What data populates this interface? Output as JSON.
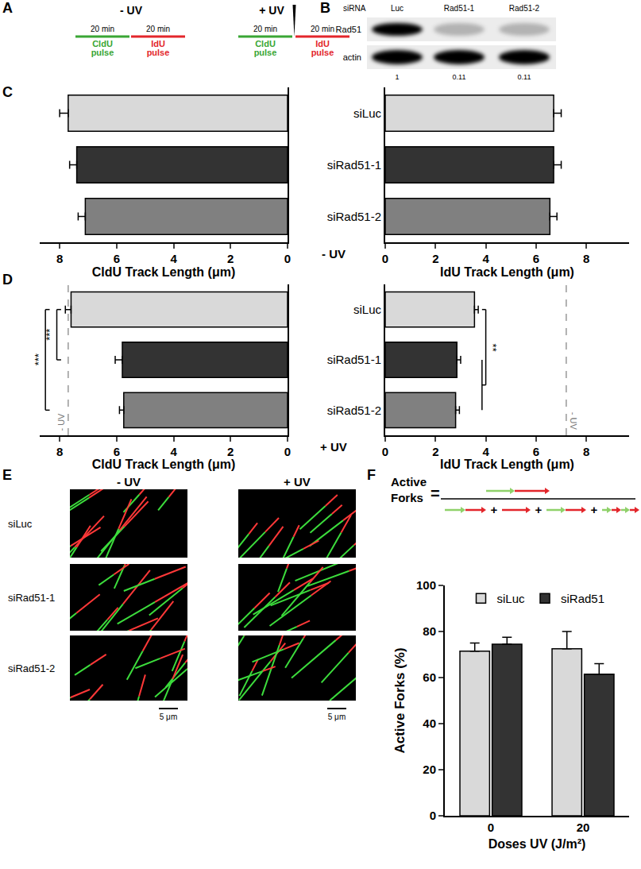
{
  "panel_labels": [
    "A",
    "B",
    "C",
    "D",
    "E",
    "F"
  ],
  "A": {
    "schemes": [
      {
        "title": "- UV",
        "uv": false
      },
      {
        "title": "+ UV",
        "uv": true
      }
    ],
    "pulses": [
      {
        "duration": "20 min",
        "label": "CldU pulse",
        "color": "#3aa635"
      },
      {
        "duration": "20 min",
        "label": "IdU pulse",
        "color": "#e3262b"
      }
    ]
  },
  "B": {
    "header": "siRNA",
    "lanes": [
      "Luc",
      "Rad51-1",
      "Rad51-2"
    ],
    "rows": [
      "Rad51",
      "actin"
    ],
    "quantification": [
      1,
      0.11,
      0.11
    ]
  },
  "chart_data": [
    {
      "type": "bar",
      "orientation": "horizontal",
      "categories": [
        "siLuc",
        "siRad51-1",
        "siRad51-2"
      ],
      "values": [
        7.7,
        7.4,
        7.1
      ],
      "errors": [
        0.3,
        0.25,
        0.25
      ],
      "colors": [
        "#d9d9d9",
        "#333333",
        "#808080"
      ],
      "x_label": "CldU Track Length (μm)",
      "xlim": [
        8.7,
        0
      ],
      "xticks": [
        0,
        2,
        4,
        6,
        8
      ],
      "tick_labels": "x"
    },
    {
      "type": "bar",
      "orientation": "horizontal",
      "categories": [
        "siLuc",
        "siRad51-1",
        "siRad51-2"
      ],
      "values": [
        6.7,
        6.7,
        6.55
      ],
      "errors": [
        0.3,
        0.3,
        0.28
      ],
      "colors": [
        "#d9d9d9",
        "#333333",
        "#808080"
      ],
      "x_label": "IdU Track Length (μm)",
      "xlim": [
        0,
        9.7
      ],
      "xticks": [
        0,
        2,
        4,
        6,
        8
      ],
      "annotations": [
        "- UV"
      ]
    },
    {
      "type": "bar",
      "orientation": "horizontal",
      "categories": [
        "siLuc",
        "siRad51-1",
        "siRad51-2"
      ],
      "values": [
        7.6,
        5.8,
        5.75
      ],
      "errors": [
        0.2,
        0.25,
        0.15
      ],
      "colors": [
        "#d9d9d9",
        "#333333",
        "#808080"
      ],
      "x_label": "CldU Track Length (μm)",
      "xlim": [
        8.7,
        0
      ],
      "xticks": [
        0,
        2,
        4,
        6,
        8
      ],
      "tick_labels": "x",
      "reference": {
        "value": 7.7,
        "label": "- UV"
      },
      "significance": [
        {
          "from": [
            "siLuc"
          ],
          "to": [
            "siRad51-1"
          ],
          "label": "***"
        },
        {
          "from": [
            "siLuc"
          ],
          "to": [
            "siRad51-2"
          ],
          "label": "***"
        }
      ]
    },
    {
      "type": "bar",
      "orientation": "horizontal",
      "categories": [
        "siLuc",
        "siRad51-1",
        "siRad51-2"
      ],
      "values": [
        3.55,
        2.85,
        2.8
      ],
      "errors": [
        0.15,
        0.15,
        0.15
      ],
      "colors": [
        "#d9d9d9",
        "#333333",
        "#808080"
      ],
      "x_label": "IdU Track Length (μm)",
      "xlim": [
        0,
        9.7
      ],
      "xticks": [
        0,
        2,
        4,
        6,
        8
      ],
      "annotations": [
        "+ UV"
      ],
      "reference": {
        "value": 7.2,
        "label": "- UV"
      },
      "significance": [
        {
          "from": [
            "siLuc"
          ],
          "to": [
            "siRad51-1",
            "siRad51-2"
          ],
          "label": "**"
        }
      ]
    },
    {
      "type": "bar",
      "categories": [
        "0",
        "20"
      ],
      "series": [
        {
          "name": "siLuc",
          "color": "#d9d9d9",
          "values": [
            71.5,
            72.5
          ],
          "errors": [
            3.5,
            7.5
          ]
        },
        {
          "name": "siRad51",
          "color": "#333333",
          "values": [
            74.5,
            61.5
          ],
          "errors": [
            3,
            4.5
          ]
        }
      ],
      "x_label": "Doses UV (J/m²)",
      "y_label": "Active Forks (%)",
      "ylim": [
        0,
        100
      ],
      "yticks": [
        0,
        20,
        40,
        60,
        80,
        100
      ],
      "legend": "top"
    }
  ],
  "E": {
    "columns": [
      "- UV",
      "+ UV"
    ],
    "rows": [
      "siLuc",
      "siRad51-1",
      "siRad51-2"
    ],
    "scale_bar": "5 μm"
  },
  "F": {
    "equation": {
      "lhs": "Active Forks",
      "equals": "=",
      "plus": "+"
    }
  }
}
